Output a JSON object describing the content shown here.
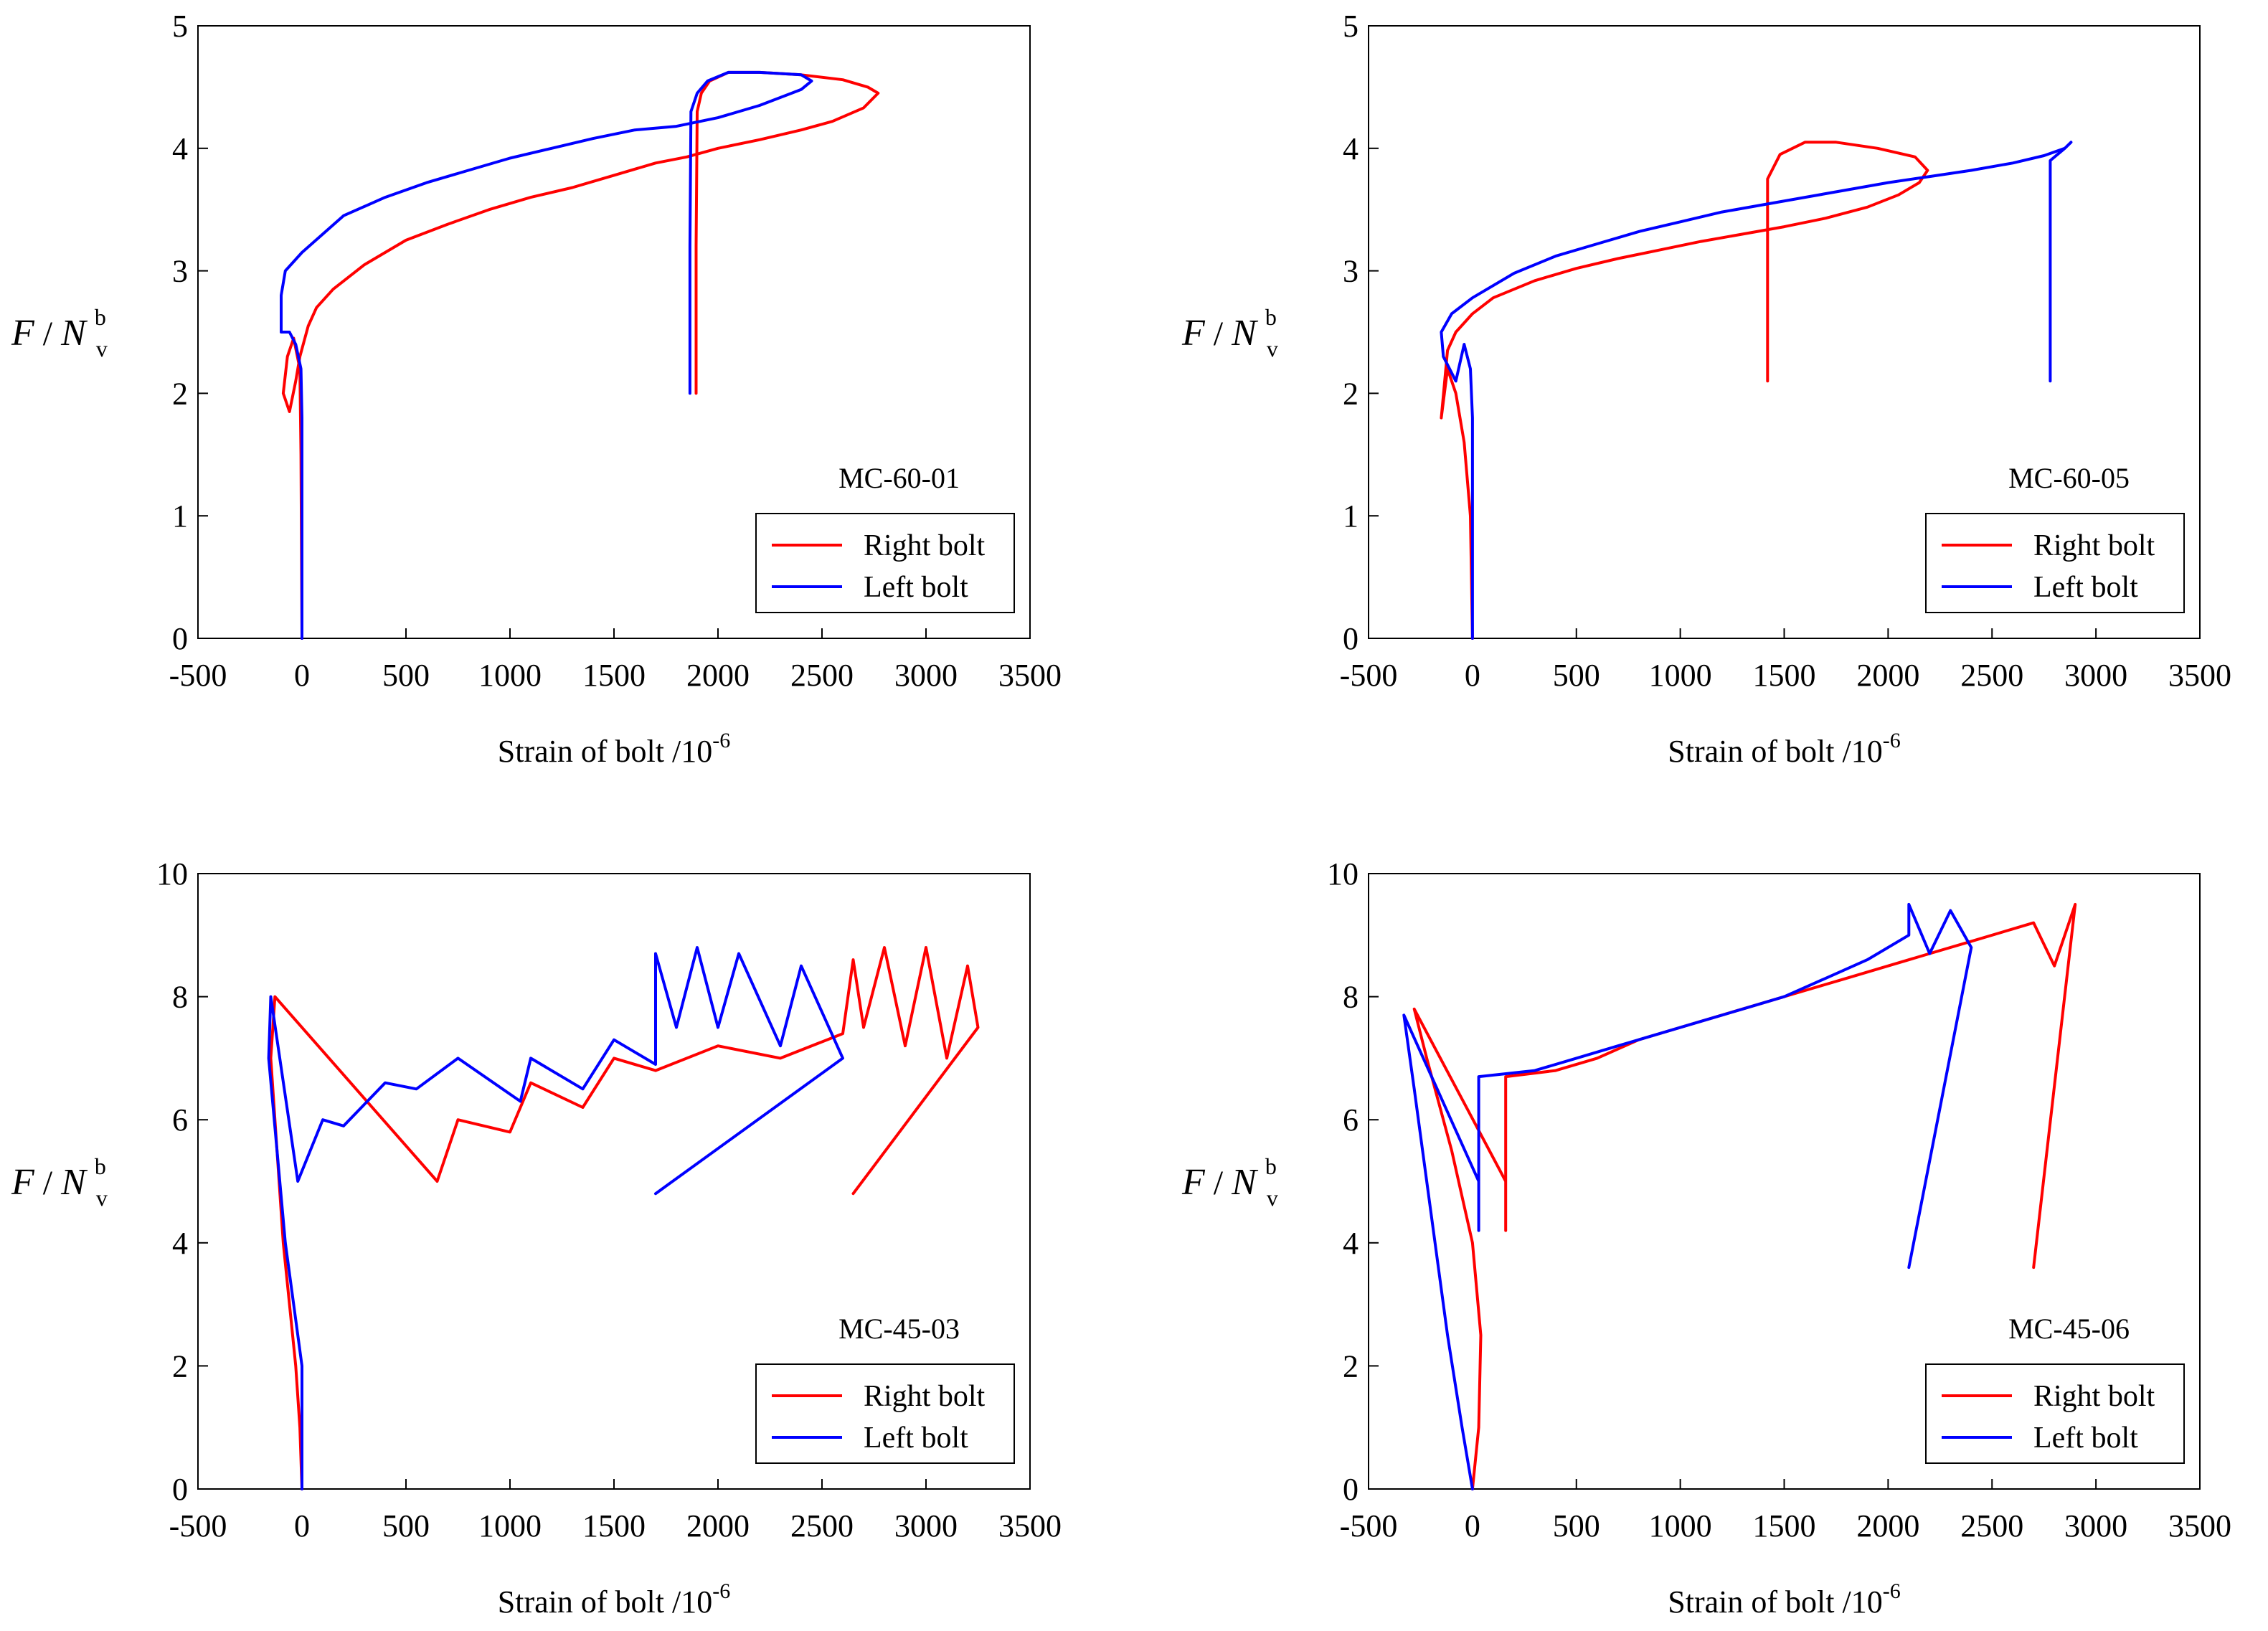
{
  "chart_data": [
    {
      "type": "line",
      "specimen": "MC-60-01",
      "xlabel": "Strain of bolt /10",
      "xlabel_exp": "-6",
      "ylabel_main": "F",
      "ylabel_mid": " / ",
      "ylabel_n": "N",
      "ylabel_sup": "b",
      "ylabel_sub": "v",
      "xlim": [
        -500,
        3500
      ],
      "ylim": [
        0,
        5
      ],
      "xticks": [
        -500,
        0,
        500,
        1000,
        1500,
        2000,
        2500,
        3000,
        3500
      ],
      "yticks": [
        0,
        1,
        2,
        3,
        4,
        5
      ],
      "legend": [
        "Right bolt",
        "Left  bolt"
      ],
      "series": [
        {
          "name": "Right bolt",
          "color": "#ff0000",
          "points": [
            [
              0,
              0
            ],
            [
              -5,
              1.5
            ],
            [
              -10,
              2.2
            ],
            [
              -40,
              2.45
            ],
            [
              -70,
              2.3
            ],
            [
              -90,
              2.0
            ],
            [
              -60,
              1.85
            ],
            [
              -30,
              2.1
            ],
            [
              -10,
              2.3
            ],
            [
              30,
              2.55
            ],
            [
              70,
              2.7
            ],
            [
              150,
              2.85
            ],
            [
              300,
              3.05
            ],
            [
              500,
              3.25
            ],
            [
              700,
              3.38
            ],
            [
              900,
              3.5
            ],
            [
              1100,
              3.6
            ],
            [
              1300,
              3.68
            ],
            [
              1500,
              3.78
            ],
            [
              1700,
              3.88
            ],
            [
              1850,
              3.93
            ],
            [
              2000,
              4.0
            ],
            [
              2200,
              4.07
            ],
            [
              2400,
              4.15
            ],
            [
              2550,
              4.22
            ],
            [
              2700,
              4.33
            ],
            [
              2770,
              4.45
            ],
            [
              2720,
              4.5
            ],
            [
              2600,
              4.56
            ],
            [
              2400,
              4.6
            ],
            [
              2200,
              4.62
            ],
            [
              2050,
              4.62
            ],
            [
              1960,
              4.55
            ],
            [
              1920,
              4.45
            ],
            [
              1900,
              4.3
            ],
            [
              1895,
              3.2
            ],
            [
              1895,
              2.0
            ]
          ]
        },
        {
          "name": "Left  bolt",
          "color": "#0000ff",
          "points": [
            [
              0,
              0
            ],
            [
              0,
              1.8
            ],
            [
              -5,
              2.2
            ],
            [
              -30,
              2.4
            ],
            [
              -60,
              2.5
            ],
            [
              -100,
              2.5
            ],
            [
              -100,
              2.8
            ],
            [
              -80,
              3.0
            ],
            [
              0,
              3.15
            ],
            [
              100,
              3.3
            ],
            [
              200,
              3.45
            ],
            [
              400,
              3.6
            ],
            [
              600,
              3.72
            ],
            [
              800,
              3.82
            ],
            [
              1000,
              3.92
            ],
            [
              1200,
              4.0
            ],
            [
              1400,
              4.08
            ],
            [
              1600,
              4.15
            ],
            [
              1800,
              4.18
            ],
            [
              2000,
              4.25
            ],
            [
              2200,
              4.35
            ],
            [
              2400,
              4.48
            ],
            [
              2450,
              4.55
            ],
            [
              2400,
              4.6
            ],
            [
              2200,
              4.62
            ],
            [
              2050,
              4.62
            ],
            [
              1950,
              4.55
            ],
            [
              1900,
              4.45
            ],
            [
              1870,
              4.3
            ],
            [
              1865,
              3.2
            ],
            [
              1865,
              2.0
            ]
          ]
        }
      ]
    },
    {
      "type": "line",
      "specimen": "MC-60-05",
      "xlabel": "Strain of bolt /10",
      "xlabel_exp": "-6",
      "ylabel_main": "F",
      "ylabel_mid": " / ",
      "ylabel_n": "N",
      "ylabel_sup": "b",
      "ylabel_sub": "v",
      "xlim": [
        -500,
        3500
      ],
      "ylim": [
        0,
        5
      ],
      "xticks": [
        -500,
        0,
        500,
        1000,
        1500,
        2000,
        2500,
        3000,
        3500
      ],
      "yticks": [
        0,
        1,
        2,
        3,
        4,
        5
      ],
      "legend": [
        "Right bolt",
        "Left  bolt"
      ],
      "series": [
        {
          "name": "Right bolt",
          "color": "#ff0000",
          "points": [
            [
              0,
              0
            ],
            [
              -10,
              1.0
            ],
            [
              -40,
              1.6
            ],
            [
              -80,
              2.0
            ],
            [
              -120,
              2.2
            ],
            [
              -150,
              1.8
            ],
            [
              -120,
              2.35
            ],
            [
              -80,
              2.5
            ],
            [
              0,
              2.65
            ],
            [
              100,
              2.78
            ],
            [
              300,
              2.92
            ],
            [
              500,
              3.02
            ],
            [
              700,
              3.1
            ],
            [
              900,
              3.17
            ],
            [
              1100,
              3.24
            ],
            [
              1300,
              3.3
            ],
            [
              1500,
              3.36
            ],
            [
              1700,
              3.43
            ],
            [
              1900,
              3.52
            ],
            [
              2050,
              3.62
            ],
            [
              2150,
              3.72
            ],
            [
              2190,
              3.82
            ],
            [
              2130,
              3.93
            ],
            [
              1950,
              4.0
            ],
            [
              1750,
              4.05
            ],
            [
              1600,
              4.05
            ],
            [
              1480,
              3.95
            ],
            [
              1420,
              3.75
            ],
            [
              1420,
              2.1
            ]
          ]
        },
        {
          "name": "Left  bolt",
          "color": "#0000ff",
          "points": [
            [
              0,
              0
            ],
            [
              0,
              1.8
            ],
            [
              -10,
              2.2
            ],
            [
              -40,
              2.4
            ],
            [
              -80,
              2.1
            ],
            [
              -140,
              2.3
            ],
            [
              -150,
              2.5
            ],
            [
              -100,
              2.65
            ],
            [
              0,
              2.78
            ],
            [
              200,
              2.98
            ],
            [
              400,
              3.12
            ],
            [
              600,
              3.22
            ],
            [
              800,
              3.32
            ],
            [
              1000,
              3.4
            ],
            [
              1200,
              3.48
            ],
            [
              1400,
              3.54
            ],
            [
              1600,
              3.6
            ],
            [
              1800,
              3.66
            ],
            [
              2000,
              3.72
            ],
            [
              2200,
              3.77
            ],
            [
              2400,
              3.82
            ],
            [
              2600,
              3.88
            ],
            [
              2750,
              3.94
            ],
            [
              2850,
              4.0
            ],
            [
              2880,
              4.05
            ],
            [
              2850,
              4.0
            ],
            [
              2780,
              3.9
            ],
            [
              2780,
              2.1
            ]
          ]
        }
      ]
    },
    {
      "type": "line",
      "specimen": "MC-45-03",
      "xlabel": "Strain of bolt /10",
      "xlabel_exp": "-6",
      "ylabel_main": "F",
      "ylabel_mid": " / ",
      "ylabel_n": "N",
      "ylabel_sup": "b",
      "ylabel_sub": "v",
      "xlim": [
        -500,
        3500
      ],
      "ylim": [
        0,
        10
      ],
      "xticks": [
        -500,
        0,
        500,
        1000,
        1500,
        2000,
        2500,
        3000,
        3500
      ],
      "yticks": [
        0,
        2,
        4,
        6,
        8,
        10
      ],
      "legend": [
        "Right bolt",
        "Left  bolt"
      ],
      "series": [
        {
          "name": "Right bolt",
          "color": "#ff0000",
          "points": [
            [
              0,
              0
            ],
            [
              -10,
              1.0
            ],
            [
              -30,
              2.0
            ],
            [
              -60,
              3.0
            ],
            [
              -90,
              4.0
            ],
            [
              -120,
              5.5
            ],
            [
              -150,
              7.0
            ],
            [
              -130,
              8.0
            ],
            [
              650,
              5.0
            ],
            [
              750,
              6.0
            ],
            [
              1000,
              5.8
            ],
            [
              1100,
              6.6
            ],
            [
              1350,
              6.2
            ],
            [
              1500,
              7.0
            ],
            [
              1700,
              6.8
            ],
            [
              2000,
              7.2
            ],
            [
              2300,
              7.0
            ],
            [
              2600,
              7.4
            ],
            [
              2650,
              8.6
            ],
            [
              2700,
              7.5
            ],
            [
              2800,
              8.8
            ],
            [
              2900,
              7.2
            ],
            [
              3000,
              8.8
            ],
            [
              3100,
              7.0
            ],
            [
              3200,
              8.5
            ],
            [
              3250,
              7.5
            ],
            [
              2650,
              4.8
            ]
          ]
        },
        {
          "name": "Left  bolt",
          "color": "#0000ff",
          "points": [
            [
              0,
              0
            ],
            [
              0,
              2.0
            ],
            [
              -40,
              3.0
            ],
            [
              -80,
              4.0
            ],
            [
              -120,
              5.5
            ],
            [
              -160,
              7.0
            ],
            [
              -150,
              8.0
            ],
            [
              -20,
              5.0
            ],
            [
              100,
              6.0
            ],
            [
              200,
              5.9
            ],
            [
              400,
              6.6
            ],
            [
              550,
              6.5
            ],
            [
              750,
              7.0
            ],
            [
              1050,
              6.3
            ],
            [
              1100,
              7.0
            ],
            [
              1350,
              6.5
            ],
            [
              1500,
              7.3
            ],
            [
              1700,
              6.9
            ],
            [
              1700,
              8.7
            ],
            [
              1800,
              7.5
            ],
            [
              1900,
              8.8
            ],
            [
              2000,
              7.5
            ],
            [
              2100,
              8.7
            ],
            [
              2300,
              7.2
            ],
            [
              2400,
              8.5
            ],
            [
              2600,
              7.0
            ],
            [
              1700,
              4.8
            ]
          ]
        }
      ]
    },
    {
      "type": "line",
      "specimen": "MC-45-06",
      "xlabel": "Strain of bolt /10",
      "xlabel_exp": "-6",
      "ylabel_main": "F",
      "ylabel_mid": " / ",
      "ylabel_n": "N",
      "ylabel_sup": "b",
      "ylabel_sub": "v",
      "xlim": [
        -500,
        3500
      ],
      "ylim": [
        0,
        10
      ],
      "xticks": [
        -500,
        0,
        500,
        1000,
        1500,
        2000,
        2500,
        3000,
        3500
      ],
      "yticks": [
        0,
        2,
        4,
        6,
        8,
        10
      ],
      "legend": [
        "Right bolt",
        "Left  bolt"
      ],
      "series": [
        {
          "name": "Right bolt",
          "color": "#ff0000",
          "points": [
            [
              0,
              0
            ],
            [
              30,
              1.0
            ],
            [
              40,
              2.5
            ],
            [
              0,
              4.0
            ],
            [
              -100,
              5.5
            ],
            [
              -220,
              7.0
            ],
            [
              -280,
              7.8
            ],
            [
              160,
              5.0
            ],
            [
              160,
              4.2
            ],
            [
              160,
              6.7
            ],
            [
              400,
              6.8
            ],
            [
              600,
              7.0
            ],
            [
              800,
              7.3
            ],
            [
              1000,
              7.5
            ],
            [
              1200,
              7.7
            ],
            [
              1400,
              7.9
            ],
            [
              1600,
              8.1
            ],
            [
              1800,
              8.3
            ],
            [
              2000,
              8.5
            ],
            [
              2200,
              8.7
            ],
            [
              2400,
              8.9
            ],
            [
              2600,
              9.1
            ],
            [
              2700,
              9.2
            ],
            [
              2800,
              8.5
            ],
            [
              2900,
              9.5
            ],
            [
              2700,
              3.6
            ]
          ]
        },
        {
          "name": "Left  bolt",
          "color": "#0000ff",
          "points": [
            [
              0,
              0
            ],
            [
              -50,
              1.0
            ],
            [
              -120,
              2.5
            ],
            [
              -200,
              4.5
            ],
            [
              -280,
              6.5
            ],
            [
              -330,
              7.7
            ],
            [
              30,
              5.0
            ],
            [
              30,
              4.2
            ],
            [
              30,
              6.7
            ],
            [
              300,
              6.8
            ],
            [
              500,
              7.0
            ],
            [
              700,
              7.2
            ],
            [
              900,
              7.4
            ],
            [
              1100,
              7.6
            ],
            [
              1300,
              7.8
            ],
            [
              1500,
              8.0
            ],
            [
              1700,
              8.3
            ],
            [
              1900,
              8.6
            ],
            [
              2100,
              9.0
            ],
            [
              2100,
              9.5
            ],
            [
              2200,
              8.7
            ],
            [
              2300,
              9.4
            ],
            [
              2400,
              8.8
            ],
            [
              2100,
              3.6
            ]
          ]
        }
      ]
    }
  ]
}
